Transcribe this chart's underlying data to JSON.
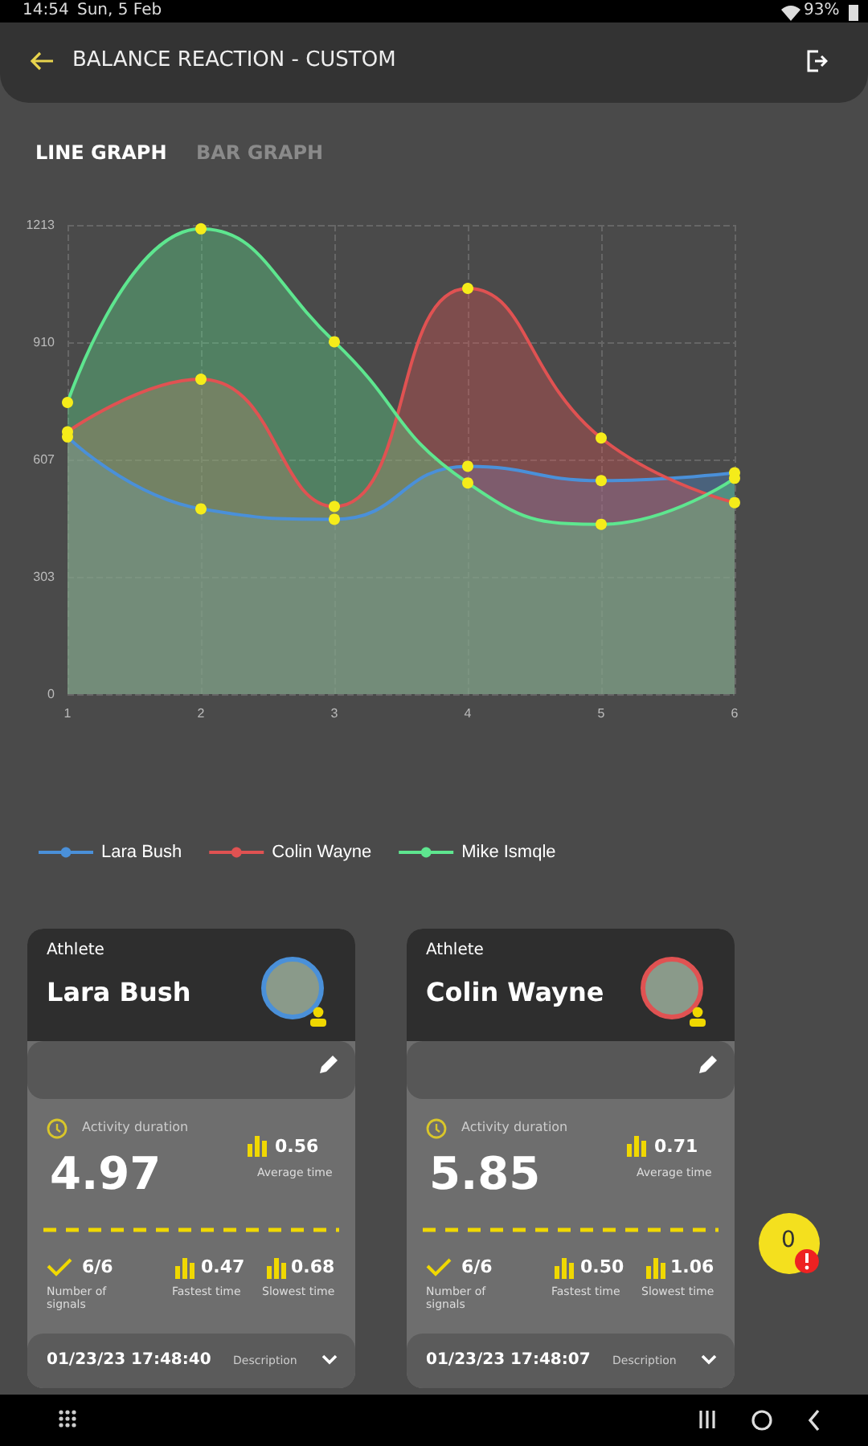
{
  "chart_data": [
    {
      "type": "area",
      "title": "BALANCE REACTION - CUSTOM",
      "annotations": [
        "14:54",
        "Sun, 5 Feb",
        "93%",
        "LINE GRAPH",
        "BAR GRAPH",
        "0"
      ],
      "categories": [
        "1",
        "2",
        "3",
        "4",
        "5",
        "6"
      ],
      "series": [
        {
          "name": "Lara Bush",
          "color": "#4a90d9",
          "values": [
            665,
            479,
            452,
            589,
            552,
            572
          ]
        },
        {
          "name": "Colin Wayne",
          "color": "#e05252",
          "values": [
            678,
            814,
            485,
            1049,
            662,
            495
          ]
        },
        {
          "name": "Mike Ismqle",
          "color": "#5ee68f",
          "values": [
            754,
            1203,
            911,
            546,
            439,
            558
          ]
        }
      ],
      "ylim": [
        0,
        1213
      ],
      "yticks": [
        0,
        303,
        607,
        910,
        1213
      ],
      "grid": true,
      "legend": "bottom left",
      "marker": "circle"
    },
    {
      "type": "other",
      "title": "Lara Bush",
      "annotations": [
        "Athlete",
        "Activity duration",
        "4.97",
        "0.56",
        "Average time",
        "6/6",
        "Number of signals",
        "0.47",
        "Fastest time",
        "0.68",
        "Slowest time",
        "01/23/23 17:48:40",
        "Description"
      ]
    },
    {
      "type": "other",
      "title": "Colin Wayne",
      "annotations": [
        "Athlete",
        "Activity duration",
        "5.85",
        "0.71",
        "Average time",
        "6/6",
        "Number of signals",
        "0.50",
        "Fastest time",
        "1.06",
        "Slowest time",
        "01/23/23 17:48:07",
        "Description"
      ]
    }
  ]
}
